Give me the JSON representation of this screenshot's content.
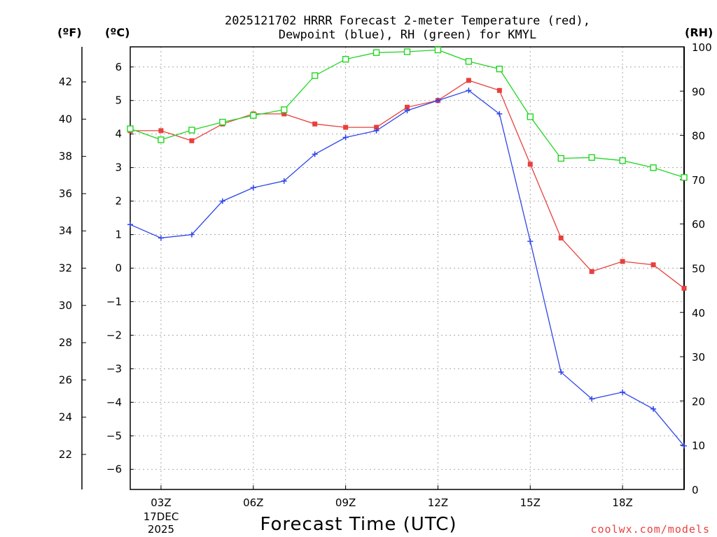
{
  "chart_data": {
    "type": "line",
    "title_line1": "2025121702 HRRR Forecast 2-meter Temperature (red),",
    "title_line2": "Dewpoint (blue), RH (green) for KMYL",
    "xlabel": "Forecast Time (UTC)",
    "credit": "coolwx.com/models",
    "units": {
      "fahrenheit": "(ºF)",
      "celsius": "(ºC)",
      "rh": "(RH)"
    },
    "date_label": {
      "day": "17DEC",
      "year": "2025"
    },
    "x": [
      2,
      3,
      4,
      5,
      6,
      7,
      8,
      9,
      10,
      11,
      12,
      13,
      14,
      15,
      16,
      17,
      18,
      19,
      20
    ],
    "xlim": [
      2,
      20
    ],
    "x_ticks": [
      {
        "x": 3,
        "label": "03Z"
      },
      {
        "x": 6,
        "label": "06Z"
      },
      {
        "x": 9,
        "label": "09Z"
      },
      {
        "x": 12,
        "label": "12Z"
      },
      {
        "x": 15,
        "label": "15Z"
      },
      {
        "x": 18,
        "label": "18Z"
      }
    ],
    "celsius_axis": {
      "ylim": [
        -6.6,
        6.6
      ],
      "ticks": [
        {
          "v": 6,
          "label": "6"
        },
        {
          "v": 5,
          "label": "5"
        },
        {
          "v": 4,
          "label": "4"
        },
        {
          "v": 3,
          "label": "3"
        },
        {
          "v": 2,
          "label": "2"
        },
        {
          "v": 1,
          "label": "1"
        },
        {
          "v": 0,
          "label": "0"
        },
        {
          "v": -1,
          "label": "−1"
        },
        {
          "v": -2,
          "label": "−2"
        },
        {
          "v": -3,
          "label": "−3"
        },
        {
          "v": -4,
          "label": "−4"
        },
        {
          "v": -5,
          "label": "−5"
        },
        {
          "v": -6,
          "label": "−6"
        }
      ]
    },
    "fahrenheit_axis": {
      "ticks": [
        {
          "v": 42,
          "label": "42"
        },
        {
          "v": 40,
          "label": "40"
        },
        {
          "v": 38,
          "label": "38"
        },
        {
          "v": 36,
          "label": "36"
        },
        {
          "v": 34,
          "label": "34"
        },
        {
          "v": 32,
          "label": "32"
        },
        {
          "v": 30,
          "label": "30"
        },
        {
          "v": 28,
          "label": "28"
        },
        {
          "v": 26,
          "label": "26"
        },
        {
          "v": 24,
          "label": "24"
        },
        {
          "v": 22,
          "label": "22"
        }
      ]
    },
    "rh_axis": {
      "ylim": [
        0,
        100
      ],
      "ticks": [
        {
          "v": 100,
          "label": "100"
        },
        {
          "v": 90,
          "label": "90"
        },
        {
          "v": 80,
          "label": "80"
        },
        {
          "v": 70,
          "label": "70"
        },
        {
          "v": 60,
          "label": "60"
        },
        {
          "v": 50,
          "label": "50"
        },
        {
          "v": 40,
          "label": "40"
        },
        {
          "v": 30,
          "label": "30"
        },
        {
          "v": 20,
          "label": "20"
        },
        {
          "v": 10,
          "label": "10"
        },
        {
          "v": 0,
          "label": "0"
        }
      ]
    },
    "series": [
      {
        "name": "Temperature",
        "axis": "celsius",
        "color": "#e8403d",
        "marker": "filled-square",
        "values": [
          4.1,
          4.1,
          3.8,
          4.3,
          4.6,
          4.6,
          4.3,
          4.2,
          4.2,
          4.8,
          5.0,
          5.6,
          5.3,
          3.1,
          0.9,
          -0.1,
          0.2,
          0.1,
          -0.6
        ]
      },
      {
        "name": "Dewpoint",
        "axis": "celsius",
        "color": "#2e45e8",
        "marker": "plus",
        "values": [
          1.3,
          0.9,
          1.0,
          2.0,
          2.4,
          2.6,
          3.4,
          3.9,
          4.1,
          4.7,
          5.0,
          5.3,
          4.6,
          0.8,
          -3.1,
          -3.9,
          -3.7,
          -4.2,
          -5.3
        ]
      },
      {
        "name": "RH",
        "axis": "rh",
        "color": "#22d622",
        "marker": "open-square",
        "values": [
          81.5,
          79.0,
          81.2,
          83.0,
          84.5,
          85.8,
          93.5,
          97.2,
          98.7,
          98.9,
          99.3,
          96.7,
          95.0,
          84.2,
          74.8,
          75.0,
          74.3,
          72.7,
          70.5
        ]
      }
    ]
  }
}
